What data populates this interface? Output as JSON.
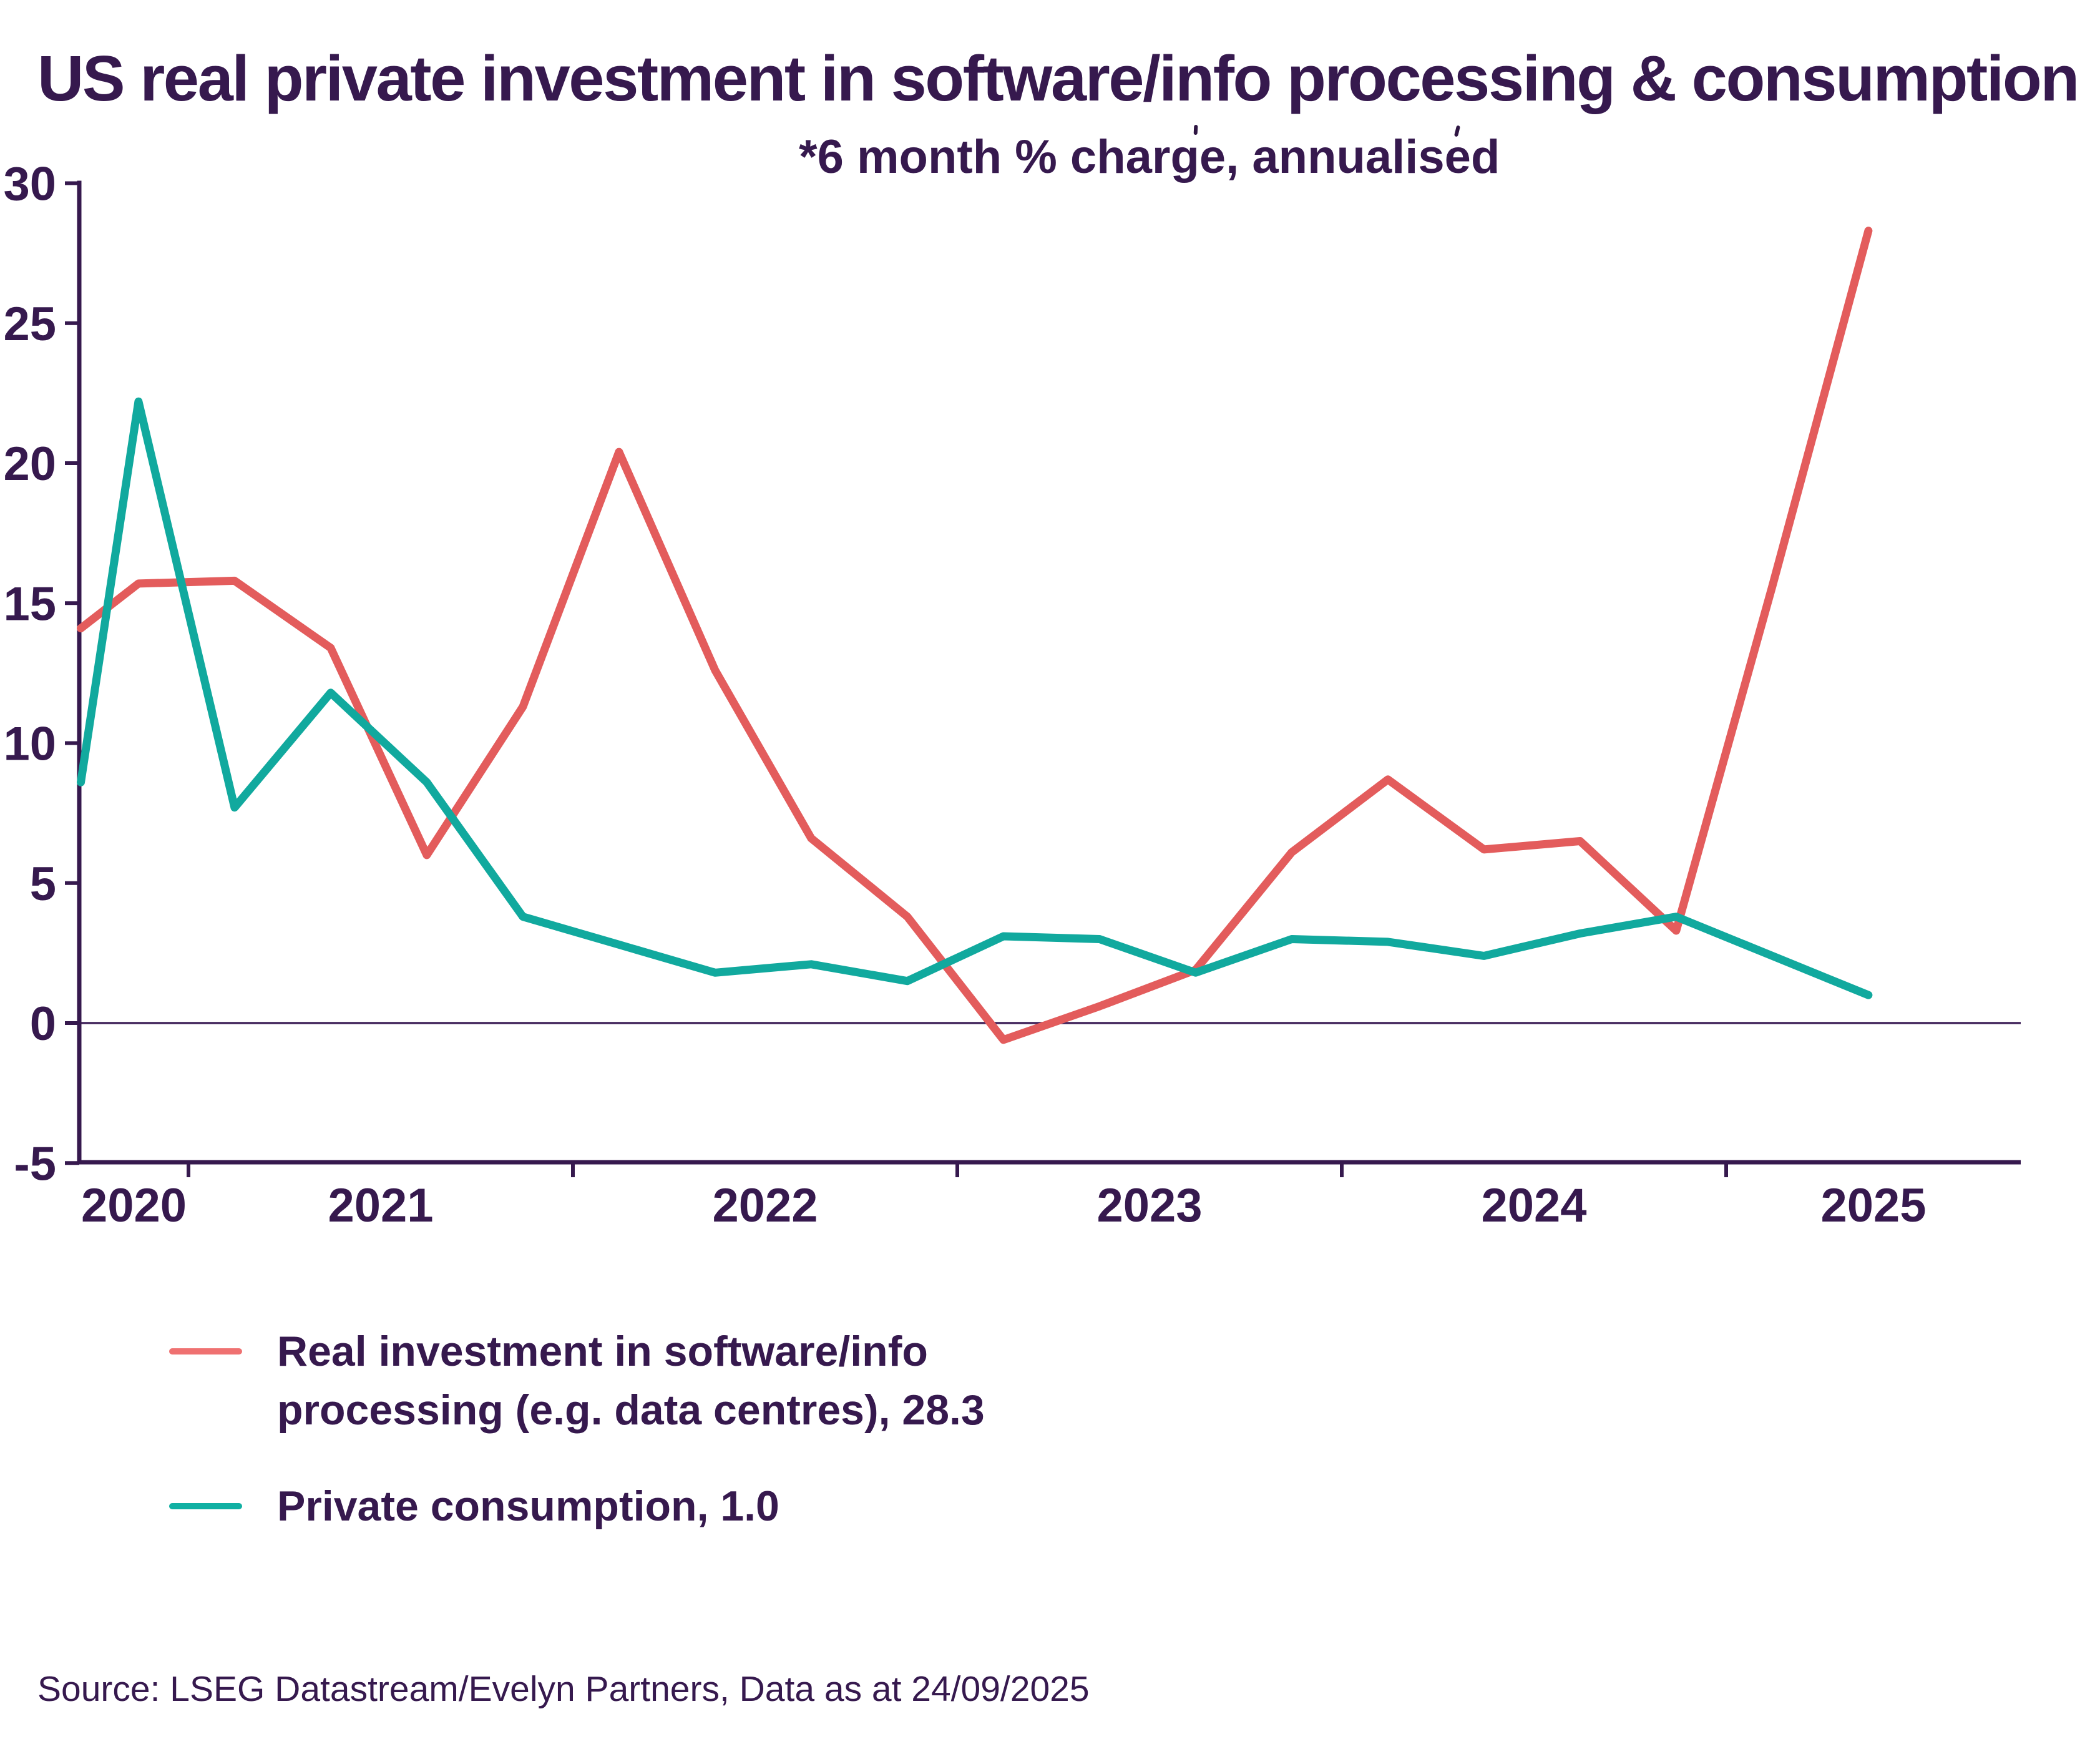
{
  "title": "US real private investment in software/info processing & consumption",
  "subtitle": "*6 month % charge, annualised",
  "source": "Source: LSEG Datastream/Evelyn Partners, Data as at 24/09/2025",
  "colors": {
    "purple": "#36194E",
    "zero_line": "#40235A",
    "background": "#FFFFFF",
    "investment_line": "#E35C5C",
    "consumption_line": "#11A99E",
    "investment_swatch": "#EF7171",
    "consumption_swatch": "#10B0A3"
  },
  "legend": {
    "items": [
      {
        "id": "investment",
        "label": "Real investment in software/info processing (e.g. data centres), 28.3",
        "color": "#EF7171"
      },
      {
        "id": "consumption",
        "label": "Private consumption, 1.0",
        "color": "#10B0A3"
      }
    ]
  },
  "chart_data": {
    "type": "line",
    "title": "US real private investment in software/info processing & consumption",
    "subtitle": "*6 month % charge, annualised",
    "xlabel": "",
    "ylabel": "6 month % change, annualised",
    "legend_position": "bottom-left",
    "grid": "zero-line-only",
    "x_axis": {
      "tick_years": [
        2021,
        2022,
        2023,
        2024,
        2025
      ],
      "labels": [
        {
          "year": 2020,
          "label": "2020"
        },
        {
          "year": 2021,
          "label": "2021"
        },
        {
          "year": 2022,
          "label": "2022"
        },
        {
          "year": 2023,
          "label": "2023"
        },
        {
          "year": 2024,
          "label": "2024"
        },
        {
          "year": 2025,
          "label": "2025"
        }
      ],
      "visible_range_years": [
        2020.72,
        2025.77
      ]
    },
    "y_axis": {
      "range": [
        -5,
        30
      ],
      "ticks": [
        {
          "value": 30,
          "label": "30"
        },
        {
          "value": 25,
          "label": "25"
        },
        {
          "value": 20,
          "label": "20"
        },
        {
          "value": 15,
          "label": "15"
        },
        {
          "value": 10,
          "label": "10"
        },
        {
          "value": 5,
          "label": "5"
        },
        {
          "value": 0,
          "label": "0"
        },
        {
          "value": -5,
          "label": "-5"
        }
      ]
    },
    "series": [
      {
        "id": "investment",
        "name": "Real investment in software/info processing (e.g. data centres)",
        "latest_value": 28.3,
        "color": "#E35C5C",
        "points": [
          [
            2020.72,
            14.1
          ],
          [
            2020.87,
            15.7
          ],
          [
            2021.12,
            15.8
          ],
          [
            2021.37,
            13.4
          ],
          [
            2021.62,
            6.0
          ],
          [
            2021.87,
            11.3
          ],
          [
            2022.12,
            20.4
          ],
          [
            2022.37,
            12.6
          ],
          [
            2022.62,
            6.6
          ],
          [
            2022.87,
            3.8
          ],
          [
            2023.12,
            -0.6
          ],
          [
            2023.37,
            0.6
          ],
          [
            2023.62,
            1.9
          ],
          [
            2023.87,
            6.1
          ],
          [
            2024.12,
            8.7
          ],
          [
            2024.37,
            6.2
          ],
          [
            2024.62,
            6.5
          ],
          [
            2024.87,
            3.3
          ],
          [
            2025.12,
            15.6
          ],
          [
            2025.37,
            28.3
          ]
        ]
      },
      {
        "id": "consumption",
        "name": "Private consumption",
        "latest_value": 1.0,
        "color": "#11A99E",
        "points": [
          [
            2020.72,
            8.6
          ],
          [
            2020.87,
            22.2
          ],
          [
            2021.12,
            7.7
          ],
          [
            2021.37,
            11.8
          ],
          [
            2021.62,
            8.6
          ],
          [
            2021.87,
            3.8
          ],
          [
            2022.12,
            2.8
          ],
          [
            2022.37,
            1.8
          ],
          [
            2022.62,
            2.1
          ],
          [
            2022.87,
            1.5
          ],
          [
            2023.12,
            3.1
          ],
          [
            2023.37,
            3.0
          ],
          [
            2023.62,
            1.8
          ],
          [
            2023.87,
            3.0
          ],
          [
            2024.12,
            2.9
          ],
          [
            2024.37,
            2.4
          ],
          [
            2024.62,
            3.2
          ],
          [
            2024.87,
            3.8
          ],
          [
            2025.12,
            2.4
          ],
          [
            2025.37,
            1.0
          ]
        ]
      }
    ]
  }
}
